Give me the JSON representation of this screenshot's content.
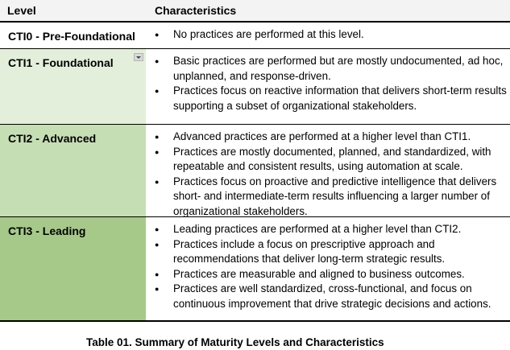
{
  "table": {
    "headers": {
      "level": "Level",
      "characteristics": "Characteristics"
    },
    "rows": [
      {
        "level": "CTI0 - Pre-Foundational",
        "level_color": "#ffffff",
        "bullets": [
          "No practices are performed at this level."
        ]
      },
      {
        "level": "CTI1 - Foundational",
        "level_color": "#e3efda",
        "bullets": [
          "Basic practices are performed but are mostly undocumented, ad hoc, unplanned, and response-driven.",
          "Practices focus on reactive information that delivers short-term results supporting a subset of organizational stakeholders."
        ]
      },
      {
        "level": "CTI2 - Advanced",
        "level_color": "#c6deb4",
        "bullets": [
          "Advanced practices are performed at a higher level than CTI1.",
          "Practices are mostly documented, planned, and standardized, with repeatable and consistent results, using automation at scale.",
          "Practices focus on proactive and predictive intelligence that delivers short- and intermediate-term results influencing a larger number of organizational stakeholders."
        ]
      },
      {
        "level": "CTI3 - Leading",
        "level_color": "#a6c98a",
        "bullets": [
          "Leading practices are performed at a higher level than CTI2.",
          "Practices include a focus on prescriptive approach and recommendations that deliver long-term strategic results.",
          "Practices are measurable and aligned to business outcomes.",
          "Practices are well standardized, cross-functional, and focus on continuous improvement that drive strategic decisions and actions."
        ]
      }
    ]
  },
  "caption": "Table 01. Summary of Maturity Levels and Characteristics",
  "icons": {
    "dropdown": "chevron-down-icon"
  }
}
